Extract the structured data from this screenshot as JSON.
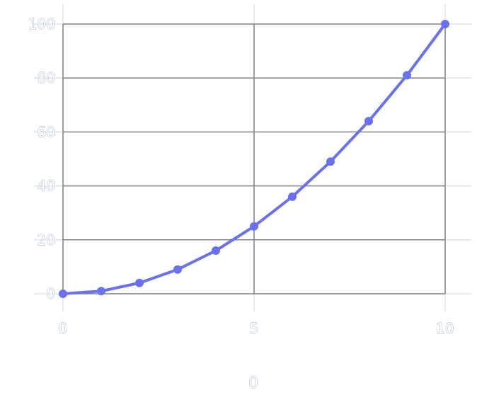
{
  "chart_data": {
    "type": "line",
    "x": [
      0,
      1,
      2,
      3,
      4,
      5,
      6,
      7,
      8,
      9,
      10
    ],
    "series": [
      {
        "values": [
          0,
          1,
          4,
          9,
          16,
          25,
          36,
          49,
          64,
          81,
          100
        ]
      }
    ],
    "xlabel": "0",
    "ylabel": "",
    "xlim": [
      0,
      10
    ],
    "ylim": [
      0,
      100
    ],
    "x_ticks": [
      0,
      5,
      10
    ],
    "y_ticks": [
      0,
      20,
      40,
      60,
      80,
      100
    ],
    "grid": true,
    "markers": true,
    "colors": {
      "series": "#6a71ee",
      "grid_outer": "#e0e3e8",
      "grid_inner": "#80848c",
      "tick_text_outline": "#9fb3c8",
      "background": "#ffffff"
    }
  }
}
